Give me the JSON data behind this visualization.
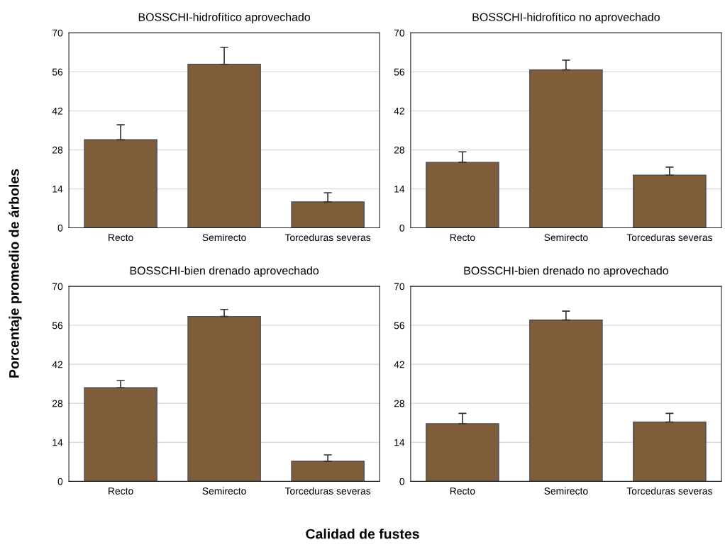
{
  "chart_data": [
    {
      "type": "bar",
      "title": "BOSSCHI-hidrofítico aprovechado",
      "ylabel": "Porcentaje promedio de árboles",
      "categories": [
        "Recto",
        "Semirecto",
        "Torceduras severas"
      ],
      "values": [
        31.6,
        58.7,
        9.3
      ],
      "errors": [
        [
          31.6,
          37.0
        ],
        [
          58.7,
          64.8
        ],
        [
          9.3,
          12.6
        ]
      ],
      "color": "#7f5d3a",
      "ylim": [
        0,
        70
      ],
      "yticks": [
        0,
        14,
        28,
        42,
        56,
        70
      ],
      "grid": "y"
    },
    {
      "type": "bar",
      "title": "BOSSCHI-hidrofítico no aprovechado",
      "categories": [
        "Recto",
        "Semirecto",
        "Torceduras severas"
      ],
      "values": [
        23.5,
        56.7,
        18.9
      ],
      "errors": [
        [
          23.5,
          27.3
        ],
        [
          56.7,
          60.2
        ],
        [
          18.9,
          21.8
        ]
      ],
      "color": "#7f5d3a",
      "ylim": [
        0,
        70
      ],
      "yticks": [
        0,
        14,
        28,
        42,
        56,
        70
      ],
      "grid": "y"
    },
    {
      "type": "bar",
      "title": "BOSSCHI-bien drenado aprovechado",
      "xlabel": "Calidad de fustes",
      "categories": [
        "Recto",
        "Semirecto",
        "Torceduras severas"
      ],
      "values": [
        33.6,
        59.2,
        7.2
      ],
      "errors": [
        [
          33.6,
          36.2
        ],
        [
          59.2,
          61.7
        ],
        [
          7.2,
          9.5
        ]
      ],
      "color": "#7f5d3a",
      "ylim": [
        0,
        70
      ],
      "yticks": [
        0,
        14,
        28,
        42,
        56,
        70
      ],
      "grid": "y"
    },
    {
      "type": "bar",
      "title": "BOSSCHI-bien drenado no aprovechado",
      "categories": [
        "Recto",
        "Semirecto",
        "Torceduras severas"
      ],
      "values": [
        20.7,
        57.9,
        21.3
      ],
      "errors": [
        [
          20.7,
          24.4
        ],
        [
          57.9,
          61.1
        ],
        [
          21.3,
          24.4
        ]
      ],
      "color": "#7f5d3a",
      "ylim": [
        0,
        70
      ],
      "yticks": [
        0,
        14,
        28,
        42,
        56,
        70
      ],
      "grid": "y"
    }
  ]
}
